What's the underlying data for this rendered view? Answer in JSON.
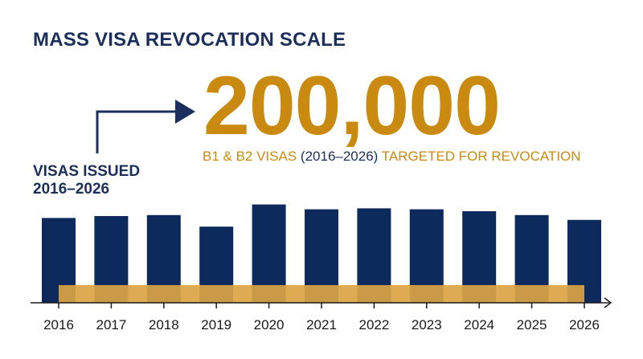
{
  "title": "MASS VISA REVOCATION SCALE",
  "headline": {
    "number": "200,000",
    "subtitle_part1": "B1 & B2 VISAS",
    "subtitle_part2": "(2016–2026)",
    "subtitle_part3": "TARGETED FOR REVOCATION"
  },
  "side_label": {
    "line1": "VISAS ISSUED",
    "line2": "2016–2026"
  },
  "colors": {
    "navy": "#1b2f5c",
    "gold": "#c98a0f",
    "bar": "#0c2a5b",
    "band": "#dba444"
  },
  "chart_data": {
    "type": "bar",
    "categories": [
      "2016",
      "2017",
      "2018",
      "2019",
      "2020",
      "2021",
      "2022",
      "2023",
      "2024",
      "2025",
      "2026"
    ],
    "values": [
      88,
      90,
      91,
      79,
      102,
      97,
      98,
      97,
      95,
      91,
      86
    ],
    "ylim": [
      0,
      100
    ],
    "xlabel": "",
    "ylabel": "",
    "grid": false,
    "overlay_band": {
      "from": "2016",
      "to": "2026"
    }
  }
}
